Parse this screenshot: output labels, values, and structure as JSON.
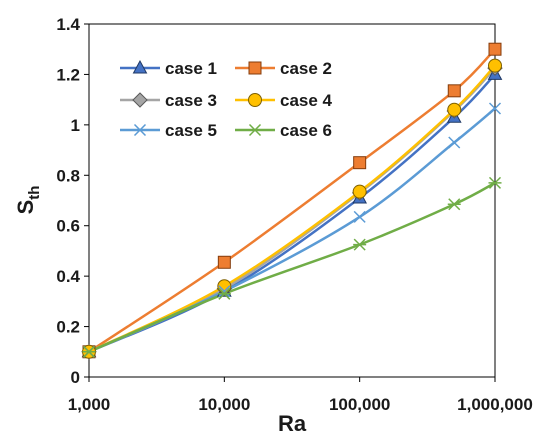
{
  "chart_data": {
    "type": "line",
    "title": "",
    "xlabel": "Ra",
    "ylabel_main": "S",
    "ylabel_sub": "th",
    "x_scale": "log",
    "xlim": [
      1000,
      1000000
    ],
    "ylim": [
      0,
      1.4
    ],
    "x_ticks": [
      1000,
      10000,
      100000,
      1000000
    ],
    "x_tick_labels": [
      "1,000",
      "10,000",
      "100,000",
      "1,000,000"
    ],
    "y_ticks": [
      0,
      0.2,
      0.4,
      0.6,
      0.8,
      1,
      1.2,
      1.4
    ],
    "y_tick_labels": [
      "0",
      "0.2",
      "0.4",
      "0.6",
      "0.8",
      "1",
      "1.2",
      "1.4"
    ],
    "grid": false,
    "legend_position": "top-left inside",
    "x": [
      1000,
      10000,
      100000,
      500000,
      1000000
    ],
    "series": [
      {
        "name": "case 1",
        "values": [
          0.1,
          0.34,
          0.71,
          1.03,
          1.2
        ],
        "color": "#4472C4",
        "marker": "triangle"
      },
      {
        "name": "case 2",
        "values": [
          0.1,
          0.455,
          0.85,
          1.135,
          1.3
        ],
        "color": "#ED7D31",
        "marker": "square"
      },
      {
        "name": "case 3",
        "values": [
          0.1,
          0.35,
          0.73,
          1.055,
          1.225
        ],
        "color": "#A5A5A5",
        "marker": "diamond"
      },
      {
        "name": "case 4",
        "values": [
          0.1,
          0.36,
          0.735,
          1.06,
          1.235
        ],
        "color": "#FFC000",
        "marker": "circle"
      },
      {
        "name": "case 5",
        "values": [
          0.1,
          0.34,
          0.635,
          0.93,
          1.065
        ],
        "color": "#5B9BD5",
        "marker": "x"
      },
      {
        "name": "case 6",
        "values": [
          0.1,
          0.33,
          0.525,
          0.685,
          0.77
        ],
        "color": "#70AD47",
        "marker": "star"
      }
    ]
  }
}
